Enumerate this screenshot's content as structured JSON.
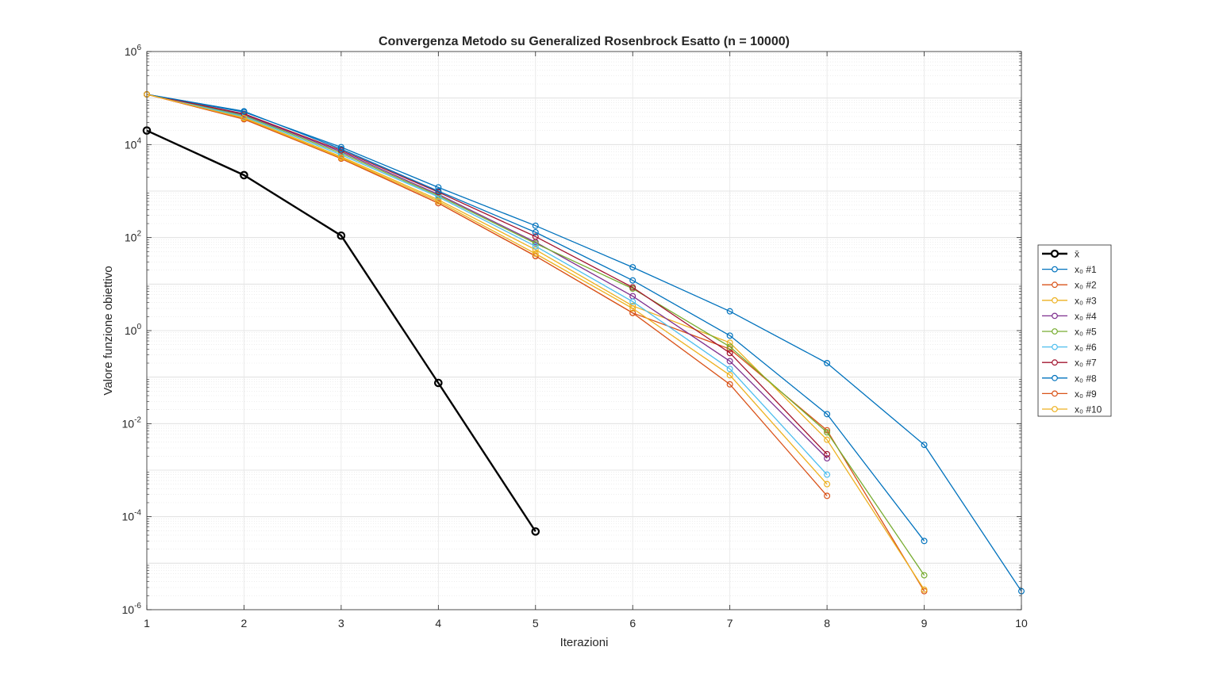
{
  "chart_data": {
    "type": "line",
    "title": "Convergenza Metodo su Generalized Rosenbrock Esatto (n = 10000)",
    "xlabel": "Iterazioni",
    "ylabel": "Valore funzione obiettivo",
    "xlim": [
      1,
      10
    ],
    "ylim": [
      1e-06,
      1000000.0
    ],
    "yscale": "log",
    "grid": true,
    "minor_grid": true,
    "legend_position": "outside-right",
    "x_ticks": [
      "1",
      "2",
      "3",
      "4",
      "5",
      "6",
      "7",
      "8",
      "9",
      "10"
    ],
    "y_ticks": [
      {
        "base": "10",
        "exp": "-6",
        "value": 1e-06
      },
      {
        "base": "10",
        "exp": "-4",
        "value": 0.0001
      },
      {
        "base": "10",
        "exp": "-2",
        "value": 0.01
      },
      {
        "base": "10",
        "exp": "0",
        "value": 1
      },
      {
        "base": "10",
        "exp": "2",
        "value": 100.0
      },
      {
        "base": "10",
        "exp": "4",
        "value": 10000.0
      },
      {
        "base": "10",
        "exp": "6",
        "value": 1000000.0
      }
    ],
    "series": [
      {
        "name": "x̄",
        "color": "#000000",
        "bold": true,
        "x": [
          1,
          2,
          3,
          4,
          5
        ],
        "y": [
          20000,
          2200,
          110,
          0.075,
          4.8e-05
        ]
      },
      {
        "name": "x₀ #1",
        "color": "#0072BD",
        "x": [
          1,
          2,
          3,
          4,
          5,
          6,
          7,
          8,
          9,
          10
        ],
        "y": [
          120000,
          50000,
          8800,
          1200,
          180,
          23,
          2.6,
          0.2,
          0.0035,
          2.5e-06
        ]
      },
      {
        "name": "x₀ #2",
        "color": "#D95319",
        "x": [
          1,
          2,
          3,
          4,
          5,
          6,
          7,
          8,
          9
        ],
        "y": [
          120000,
          35000,
          5000,
          550,
          40,
          2.4,
          0.4,
          0.0072,
          2.5e-06
        ]
      },
      {
        "name": "x₀ #3",
        "color": "#EDB120",
        "x": [
          1,
          2,
          3,
          4,
          5,
          6,
          7,
          8,
          9
        ],
        "y": [
          120000,
          38000,
          5500,
          650,
          55,
          3.4,
          0.55,
          0.0045,
          2.7e-06
        ]
      },
      {
        "name": "x₀ #4",
        "color": "#7E2F8E",
        "x": [
          1,
          2,
          3,
          4,
          5,
          6,
          7,
          8
        ],
        "y": [
          120000,
          44000,
          7000,
          850,
          80,
          5.5,
          0.22,
          0.0018
        ]
      },
      {
        "name": "x₀ #5",
        "color": "#77AC30",
        "x": [
          1,
          2,
          3,
          4,
          5,
          6,
          7,
          8,
          9
        ],
        "y": [
          120000,
          42000,
          6500,
          800,
          75,
          8,
          0.45,
          0.0065,
          5.5e-06
        ]
      },
      {
        "name": "x₀ #6",
        "color": "#4DBEEE",
        "x": [
          1,
          2,
          3,
          4,
          5,
          6,
          7,
          8
        ],
        "y": [
          120000,
          40000,
          6000,
          750,
          65,
          4.2,
          0.15,
          0.0008
        ]
      },
      {
        "name": "x₀ #7",
        "color": "#A2142F",
        "x": [
          1,
          2,
          3,
          4,
          5,
          6,
          7,
          8
        ],
        "y": [
          120000,
          46000,
          7500,
          950,
          105,
          8.5,
          0.33,
          0.0022
        ]
      },
      {
        "name": "x₀ #8",
        "color": "#0072BD",
        "x": [
          1,
          2,
          3,
          4,
          5,
          6,
          7,
          8,
          9
        ],
        "y": [
          120000,
          52000,
          8000,
          1000,
          130,
          12,
          0.78,
          0.016,
          3e-05
        ]
      },
      {
        "name": "x₀ #9",
        "color": "#D95319",
        "x": [
          1,
          2,
          3,
          4,
          5,
          6,
          7,
          8
        ],
        "y": [
          120000,
          36000,
          5000,
          550,
          40,
          2.4,
          0.07,
          0.00028
        ]
      },
      {
        "name": "x₀ #10",
        "color": "#EDB120",
        "x": [
          1,
          2,
          3,
          4,
          5,
          6,
          7,
          8
        ],
        "y": [
          120000,
          37000,
          5200,
          600,
          45,
          3,
          0.11,
          0.0005
        ]
      }
    ]
  }
}
